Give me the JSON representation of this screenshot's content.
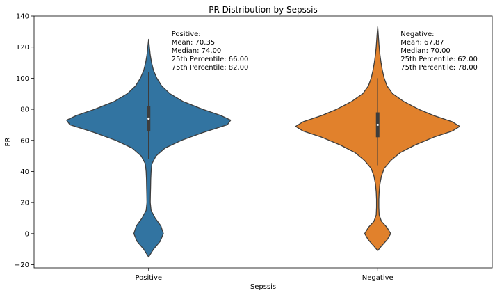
{
  "chart_data": {
    "type": "violin",
    "title": "PR Distribution by Sepssis",
    "xlabel": "Sepssis",
    "ylabel": "PR",
    "ylim": [
      -22,
      140
    ],
    "yticks": [
      -20,
      0,
      20,
      40,
      60,
      80,
      100,
      120,
      140
    ],
    "categories": [
      "Positive",
      "Negative"
    ],
    "series": [
      {
        "name": "Positive",
        "color": "#3274a1",
        "min": -15,
        "max": 125,
        "whisker_low": 48,
        "whisker_high": 104,
        "q1": 66,
        "median": 74,
        "q3": 82,
        "profile": [
          [
            -15,
            0
          ],
          [
            -10,
            0.03
          ],
          [
            -5,
            0.07
          ],
          [
            0,
            0.09
          ],
          [
            5,
            0.075
          ],
          [
            10,
            0.04
          ],
          [
            15,
            0.015
          ],
          [
            20,
            0.01
          ],
          [
            25,
            0.011
          ],
          [
            30,
            0.012
          ],
          [
            35,
            0.013
          ],
          [
            40,
            0.015
          ],
          [
            45,
            0.02
          ],
          [
            50,
            0.045
          ],
          [
            55,
            0.1
          ],
          [
            60,
            0.2
          ],
          [
            65,
            0.33
          ],
          [
            70,
            0.48
          ],
          [
            73,
            0.5
          ],
          [
            76,
            0.44
          ],
          [
            80,
            0.33
          ],
          [
            85,
            0.21
          ],
          [
            90,
            0.13
          ],
          [
            95,
            0.08
          ],
          [
            100,
            0.05
          ],
          [
            105,
            0.03
          ],
          [
            110,
            0.018
          ],
          [
            115,
            0.01
          ],
          [
            120,
            0.005
          ],
          [
            125,
            0
          ]
        ],
        "annotation": [
          "Positive:",
          "Mean: 70.35",
          "Median: 74.00",
          "25th Percentile: 66.00",
          "75th Percentile: 82.00"
        ]
      },
      {
        "name": "Negative",
        "color": "#e1812c",
        "min": -11,
        "max": 133,
        "whisker_low": 44,
        "whisker_high": 100,
        "q1": 62,
        "median": 70,
        "q3": 78,
        "profile": [
          [
            -11,
            0
          ],
          [
            -8,
            0.02
          ],
          [
            -4,
            0.05
          ],
          [
            0,
            0.07
          ],
          [
            4,
            0.05
          ],
          [
            8,
            0.02
          ],
          [
            12,
            0.008
          ],
          [
            17,
            0.006
          ],
          [
            22,
            0.006
          ],
          [
            27,
            0.008
          ],
          [
            32,
            0.012
          ],
          [
            37,
            0.02
          ],
          [
            42,
            0.035
          ],
          [
            47,
            0.07
          ],
          [
            52,
            0.12
          ],
          [
            57,
            0.2
          ],
          [
            62,
            0.3
          ],
          [
            66,
            0.4
          ],
          [
            69,
            0.44
          ],
          [
            72,
            0.4
          ],
          [
            76,
            0.3
          ],
          [
            80,
            0.22
          ],
          [
            85,
            0.14
          ],
          [
            90,
            0.08
          ],
          [
            95,
            0.05
          ],
          [
            100,
            0.035
          ],
          [
            105,
            0.025
          ],
          [
            110,
            0.018
          ],
          [
            115,
            0.012
          ],
          [
            120,
            0.008
          ],
          [
            125,
            0.005
          ],
          [
            130,
            0.002
          ],
          [
            133,
            0
          ]
        ],
        "annotation": [
          "Negative:",
          "Mean: 67.87",
          "Median: 70.00",
          "25th Percentile: 62.00",
          "75th Percentile: 78.00"
        ]
      }
    ],
    "grid": false,
    "legend": "none"
  }
}
